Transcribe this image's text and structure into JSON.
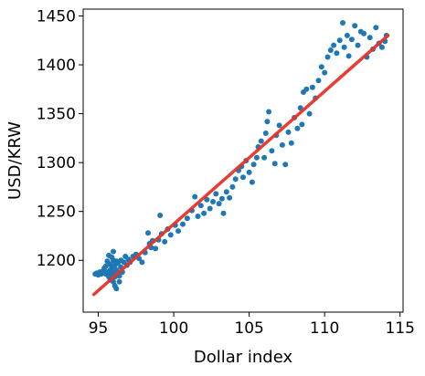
{
  "chart_data": {
    "type": "scatter",
    "title": "",
    "xlabel": "Dollar index",
    "ylabel": "USD/KRW",
    "xlim": [
      94.0,
      115.2
    ],
    "ylim": [
      1147,
      1457
    ],
    "xticks": [
      95,
      100,
      105,
      110,
      115
    ],
    "yticks": [
      1200,
      1250,
      1300,
      1350,
      1400,
      1450
    ],
    "grid": false,
    "legend": "none",
    "series": [
      {
        "kind": "scatter",
        "color": "#1f77b4",
        "points": [
          [
            94.8,
            1186
          ],
          [
            94.9,
            1187
          ],
          [
            95.0,
            1185
          ],
          [
            95.1,
            1188
          ],
          [
            95.2,
            1186
          ],
          [
            95.3,
            1189
          ],
          [
            95.4,
            1192
          ],
          [
            95.5,
            1186
          ],
          [
            95.5,
            1194
          ],
          [
            95.6,
            1199
          ],
          [
            95.6,
            1188
          ],
          [
            95.7,
            1205
          ],
          [
            95.7,
            1183
          ],
          [
            95.8,
            1196
          ],
          [
            95.8,
            1190
          ],
          [
            95.8,
            1180
          ],
          [
            95.9,
            1203
          ],
          [
            95.9,
            1193
          ],
          [
            95.9,
            1186
          ],
          [
            96.0,
            1200
          ],
          [
            96.0,
            1209
          ],
          [
            96.0,
            1188
          ],
          [
            96.0,
            1178
          ],
          [
            96.1,
            1195
          ],
          [
            96.1,
            1183
          ],
          [
            96.1,
            1174
          ],
          [
            96.2,
            1199
          ],
          [
            96.2,
            1190
          ],
          [
            96.2,
            1171
          ],
          [
            96.3,
            1197
          ],
          [
            96.3,
            1187
          ],
          [
            96.4,
            1184
          ],
          [
            96.4,
            1178
          ],
          [
            96.5,
            1193
          ],
          [
            96.5,
            1200
          ],
          [
            96.6,
            1188
          ],
          [
            96.7,
            1198
          ],
          [
            96.8,
            1204
          ],
          [
            96.9,
            1195
          ],
          [
            97.0,
            1201
          ],
          [
            97.1,
            1198
          ],
          [
            97.3,
            1204
          ],
          [
            97.5,
            1206
          ],
          [
            97.7,
            1202
          ],
          [
            97.9,
            1198
          ],
          [
            98.1,
            1208
          ],
          [
            98.3,
            1228
          ],
          [
            98.4,
            1217
          ],
          [
            98.5,
            1213
          ],
          [
            98.6,
            1220
          ],
          [
            98.8,
            1212
          ],
          [
            99.0,
            1221
          ],
          [
            99.1,
            1246
          ],
          [
            99.2,
            1227
          ],
          [
            99.4,
            1219
          ],
          [
            99.6,
            1232
          ],
          [
            99.8,
            1226
          ],
          [
            100.1,
            1236
          ],
          [
            100.3,
            1230
          ],
          [
            100.6,
            1237
          ],
          [
            100.9,
            1243
          ],
          [
            101.2,
            1251
          ],
          [
            101.4,
            1265
          ],
          [
            101.6,
            1245
          ],
          [
            101.8,
            1256
          ],
          [
            102.0,
            1248
          ],
          [
            102.2,
            1262
          ],
          [
            102.4,
            1253
          ],
          [
            102.6,
            1260
          ],
          [
            102.8,
            1268
          ],
          [
            103.0,
            1258
          ],
          [
            103.2,
            1263
          ],
          [
            103.3,
            1248
          ],
          [
            103.5,
            1270
          ],
          [
            103.7,
            1264
          ],
          [
            103.9,
            1275
          ],
          [
            104.1,
            1283
          ],
          [
            104.3,
            1292
          ],
          [
            104.5,
            1296
          ],
          [
            104.6,
            1285
          ],
          [
            104.8,
            1302
          ],
          [
            105.0,
            1290
          ],
          [
            105.2,
            1280
          ],
          [
            105.3,
            1298
          ],
          [
            105.5,
            1305
          ],
          [
            105.6,
            1316
          ],
          [
            105.8,
            1322
          ],
          [
            106.0,
            1305
          ],
          [
            106.1,
            1330
          ],
          [
            106.2,
            1342
          ],
          [
            106.3,
            1352
          ],
          [
            106.5,
            1312
          ],
          [
            106.7,
            1299
          ],
          [
            106.8,
            1328
          ],
          [
            107.0,
            1338
          ],
          [
            107.2,
            1318
          ],
          [
            107.4,
            1298
          ],
          [
            107.6,
            1331
          ],
          [
            107.8,
            1320
          ],
          [
            108.0,
            1346
          ],
          [
            108.2,
            1335
          ],
          [
            108.4,
            1356
          ],
          [
            108.5,
            1339
          ],
          [
            108.6,
            1372
          ],
          [
            108.8,
            1375
          ],
          [
            109.0,
            1350
          ],
          [
            109.2,
            1377
          ],
          [
            109.4,
            1366
          ],
          [
            109.6,
            1384
          ],
          [
            109.8,
            1398
          ],
          [
            110.0,
            1392
          ],
          [
            110.2,
            1408
          ],
          [
            110.4,
            1415
          ],
          [
            110.6,
            1420
          ],
          [
            110.8,
            1412
          ],
          [
            111.0,
            1425
          ],
          [
            111.2,
            1443
          ],
          [
            111.3,
            1418
          ],
          [
            111.5,
            1430
          ],
          [
            111.6,
            1409
          ],
          [
            111.8,
            1426
          ],
          [
            112.0,
            1440
          ],
          [
            112.2,
            1420
          ],
          [
            112.4,
            1434
          ],
          [
            112.6,
            1432
          ],
          [
            112.8,
            1408
          ],
          [
            113.0,
            1428
          ],
          [
            113.2,
            1416
          ],
          [
            113.4,
            1438
          ],
          [
            113.6,
            1422
          ],
          [
            113.8,
            1418
          ],
          [
            114.0,
            1424
          ],
          [
            114.1,
            1430
          ]
        ]
      },
      {
        "kind": "line",
        "color": "#e8332a",
        "points": [
          [
            94.7,
            1165
          ],
          [
            114.2,
            1430
          ]
        ]
      }
    ]
  }
}
